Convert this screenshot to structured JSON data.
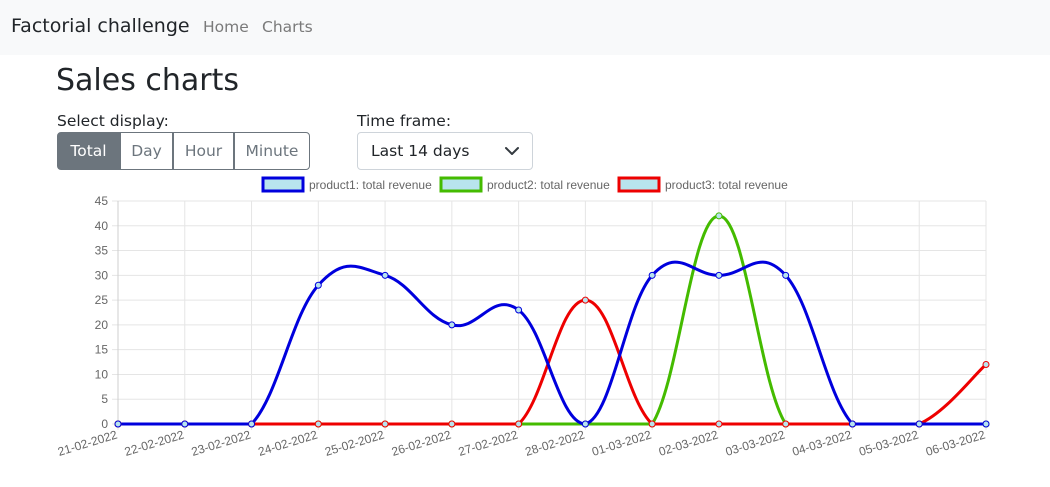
{
  "navbar": {
    "brand": "Factorial challenge",
    "links": [
      "Home",
      "Charts"
    ]
  },
  "page": {
    "title": "Sales charts"
  },
  "display": {
    "label": "Select display:",
    "buttons": [
      "Total",
      "Day",
      "Hour",
      "Minute"
    ],
    "active": "Total"
  },
  "timeframe": {
    "label": "Time frame:",
    "selected": "Last 14 days"
  },
  "colors": {
    "accent": "#6c757d",
    "product1": "#0000dd",
    "product2": "#44bb00",
    "product3": "#ee0000",
    "legend_fill": "#b8e4ee"
  },
  "chart_data": {
    "type": "line",
    "categories": [
      "21-02-2022",
      "22-02-2022",
      "23-02-2022",
      "24-02-2022",
      "25-02-2022",
      "26-02-2022",
      "27-02-2022",
      "28-02-2022",
      "01-03-2022",
      "02-03-2022",
      "03-03-2022",
      "04-03-2022",
      "05-03-2022",
      "06-03-2022"
    ],
    "series": [
      {
        "name": "product1: total revenue",
        "values": [
          0,
          0,
          0,
          28,
          30,
          20,
          23,
          0,
          30,
          30,
          30,
          0,
          0,
          0
        ]
      },
      {
        "name": "product2: total revenue",
        "values": [
          0,
          0,
          0,
          0,
          0,
          0,
          0,
          0,
          0,
          42,
          0,
          0,
          0,
          0
        ]
      },
      {
        "name": "product3: total revenue",
        "values": [
          0,
          0,
          0,
          0,
          0,
          0,
          0,
          25,
          0,
          0,
          0,
          0,
          0,
          12
        ]
      }
    ],
    "ylim": [
      0,
      45
    ],
    "yticks": [
      0,
      5,
      10,
      15,
      20,
      25,
      30,
      35,
      40,
      45
    ],
    "grid": true,
    "legend": "top"
  }
}
